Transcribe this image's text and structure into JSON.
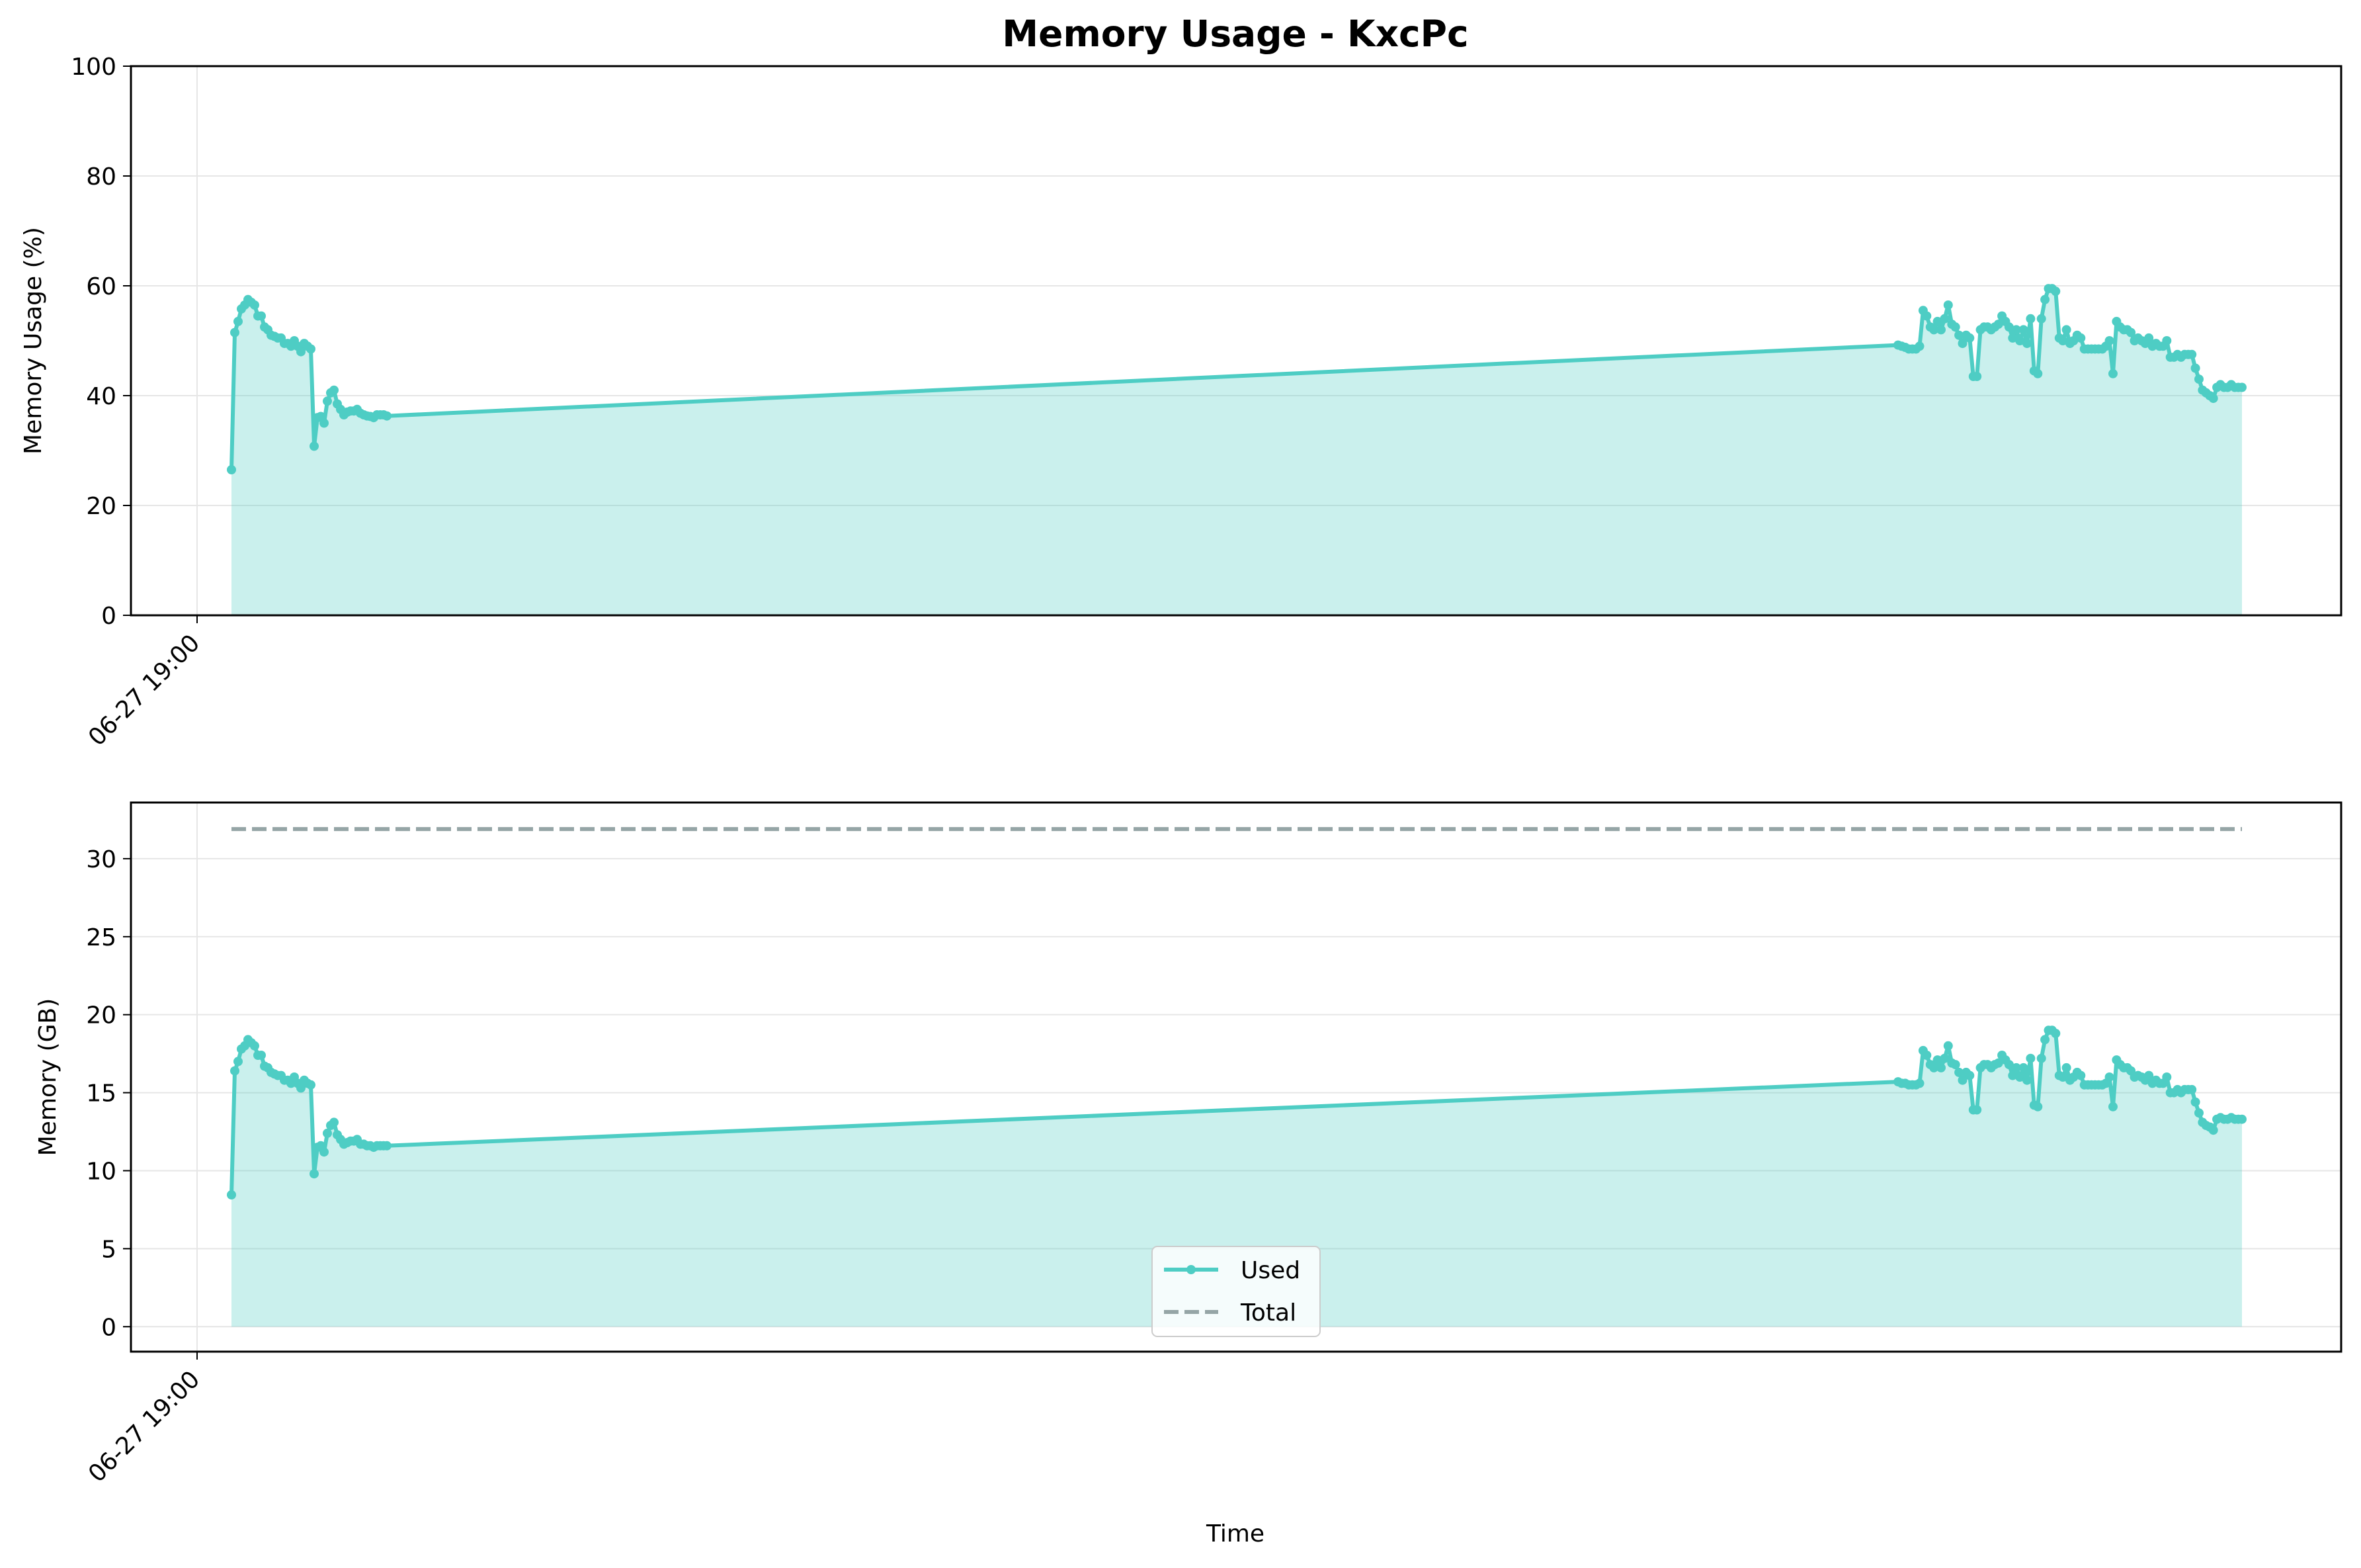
{
  "chart_data": [
    {
      "type": "area",
      "title": "Memory Usage - KxcPc",
      "xlabel": "",
      "ylabel": "Memory Usage (%)",
      "ylim": [
        0,
        100
      ],
      "yticks": [
        0,
        20,
        40,
        60,
        80,
        100
      ],
      "x_tick_labels": [
        "06-27 19:00"
      ],
      "grid": true,
      "color": "#4ecdc4",
      "series": [
        {
          "values": [
            26.5,
            51.5,
            53.5,
            55.8,
            56.5,
            57.5,
            57.0,
            56.5,
            54.5,
            54.5,
            52.5,
            52.0,
            51.0,
            50.8,
            50.5,
            50.5,
            49.5,
            49.5,
            49.0,
            50.0,
            49.0,
            48.0,
            49.5,
            49.0,
            48.5,
            30.8,
            36.0,
            36.2,
            35.0,
            39.0,
            40.5,
            41.0,
            38.5,
            37.5,
            36.5,
            37.0,
            37.2,
            37.2,
            37.5,
            36.8,
            36.5,
            36.3,
            36.2,
            36.0,
            36.5,
            36.5,
            36.5,
            36.3,
            49.2,
            49.0,
            48.8,
            48.5,
            48.5,
            48.5,
            49.0,
            55.5,
            54.5,
            52.5,
            52.0,
            53.5,
            52.0,
            54.0,
            56.5,
            53.0,
            52.5,
            51.0,
            49.5,
            51.0,
            50.5,
            43.5,
            43.5,
            52.0,
            52.5,
            52.5,
            52.0,
            52.5,
            53.0,
            54.5,
            53.5,
            52.5,
            50.5,
            52.0,
            50.0,
            52.0,
            49.5,
            54.0,
            44.5,
            44.0,
            54.0,
            57.5,
            59.5,
            59.5,
            59.0,
            50.5,
            50.0,
            52.0,
            49.5,
            50.0,
            51.0,
            50.5,
            48.5,
            48.5,
            48.5,
            48.5,
            48.5,
            48.5,
            49.0,
            50.0,
            44.0,
            53.5,
            52.5,
            52.0,
            52.0,
            51.5,
            50.0,
            50.5,
            50.0,
            49.5,
            50.5,
            49.0,
            49.5,
            49.0,
            49.0,
            50.0,
            47.0,
            47.0,
            47.5,
            47.0,
            47.5,
            47.5,
            47.5,
            45.0,
            43.0,
            41.0,
            40.5,
            40.0,
            39.5,
            41.5,
            42.0,
            41.5,
            41.5,
            42.0,
            41.5,
            41.5,
            41.5
          ]
        }
      ]
    },
    {
      "type": "area",
      "title": "",
      "xlabel": "Time",
      "ylabel": "Memory (GB)",
      "ylim": [
        -1.6,
        33.6
      ],
      "yticks": [
        0,
        5,
        10,
        15,
        20,
        25,
        30
      ],
      "x_tick_labels": [
        "06-27 19:00"
      ],
      "grid": true,
      "legend_position": "lower center",
      "series": [
        {
          "name": "Used",
          "color": "#4ecdc4",
          "style": "solid-with-markers",
          "values": [
            8.45,
            16.4,
            17.0,
            17.8,
            18.0,
            18.4,
            18.2,
            18.0,
            17.4,
            17.4,
            16.7,
            16.6,
            16.3,
            16.2,
            16.1,
            16.1,
            15.8,
            15.8,
            15.6,
            16.0,
            15.6,
            15.3,
            15.8,
            15.6,
            15.5,
            9.8,
            11.5,
            11.6,
            11.2,
            12.4,
            12.9,
            13.1,
            12.3,
            12.0,
            11.7,
            11.8,
            11.9,
            11.9,
            12.0,
            11.7,
            11.7,
            11.6,
            11.6,
            11.5,
            11.6,
            11.6,
            11.6,
            11.6,
            15.7,
            15.6,
            15.6,
            15.5,
            15.5,
            15.5,
            15.6,
            17.7,
            17.4,
            16.8,
            16.6,
            17.1,
            16.6,
            17.2,
            18.0,
            16.9,
            16.8,
            16.3,
            15.8,
            16.3,
            16.1,
            13.9,
            13.9,
            16.6,
            16.8,
            16.8,
            16.6,
            16.8,
            16.9,
            17.4,
            17.1,
            16.8,
            16.1,
            16.6,
            16.0,
            16.6,
            15.8,
            17.2,
            14.2,
            14.1,
            17.2,
            18.4,
            19.0,
            19.0,
            18.8,
            16.1,
            16.0,
            16.6,
            15.8,
            16.0,
            16.3,
            16.1,
            15.5,
            15.5,
            15.5,
            15.5,
            15.5,
            15.5,
            15.6,
            16.0,
            14.1,
            17.1,
            16.8,
            16.6,
            16.6,
            16.4,
            16.0,
            16.1,
            16.0,
            15.8,
            16.1,
            15.6,
            15.8,
            15.6,
            15.6,
            16.0,
            15.0,
            15.0,
            15.2,
            15.0,
            15.2,
            15.2,
            15.2,
            14.4,
            13.7,
            13.1,
            12.9,
            12.8,
            12.6,
            13.3,
            13.4,
            13.3,
            13.3,
            13.4,
            13.3,
            13.3,
            13.3
          ]
        },
        {
          "name": "Total",
          "color": "#95a5a6",
          "style": "dashed",
          "values": [
            31.9
          ]
        }
      ]
    }
  ]
}
